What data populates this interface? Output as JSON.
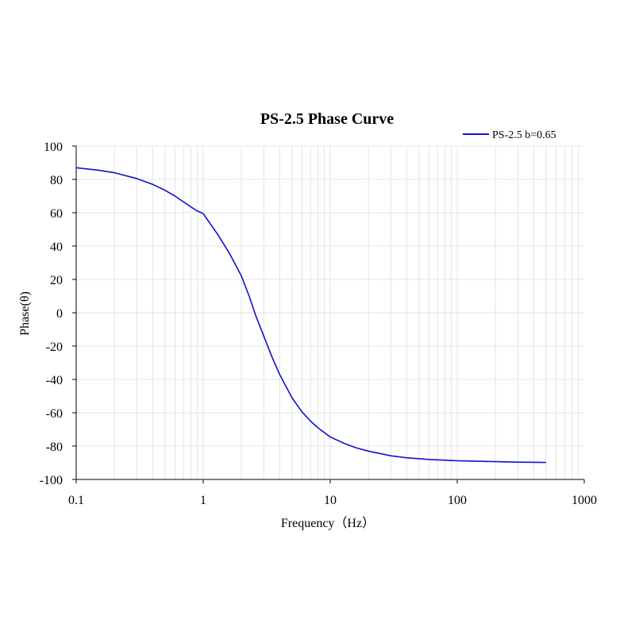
{
  "chart_data": {
    "type": "line",
    "title": "PS-2.5 Phase Curve",
    "xlabel": "Frequency（Hz）",
    "ylabel": "Phase(θ)",
    "xscale": "log",
    "xlim": [
      0.1,
      1000
    ],
    "ylim": [
      -100,
      100
    ],
    "grid": true,
    "legend_position": "top-right",
    "x_tick_labels": [
      "0.1",
      "1",
      "10",
      "100",
      "1000"
    ],
    "y_tick_labels": [
      "100",
      "80",
      "60",
      "40",
      "20",
      "0",
      "-20",
      "-40",
      "-60",
      "-80",
      "-100"
    ],
    "series": [
      {
        "name": "PS-2.5 b=0.65",
        "color": "#1010d0",
        "x": [
          0.1,
          0.15,
          0.2,
          0.3,
          0.4,
          0.5,
          0.6,
          0.7,
          0.8,
          0.9,
          1.0,
          1.3,
          1.6,
          2.0,
          2.3,
          2.6,
          3.0,
          3.5,
          4.0,
          5.0,
          6.0,
          7.0,
          8.0,
          10,
          13,
          16,
          20,
          30,
          40,
          60,
          100,
          200,
          300,
          500
        ],
        "values": [
          87,
          85.5,
          84,
          80.5,
          77,
          73.5,
          70,
          66.5,
          63.5,
          61,
          59.5,
          47,
          36,
          22,
          10,
          -2,
          -14,
          -27,
          -37,
          -51,
          -59.5,
          -65,
          -69,
          -74.5,
          -78.5,
          -81,
          -83,
          -85.8,
          -87,
          -88,
          -88.8,
          -89.3,
          -89.6,
          -89.8
        ]
      }
    ]
  }
}
